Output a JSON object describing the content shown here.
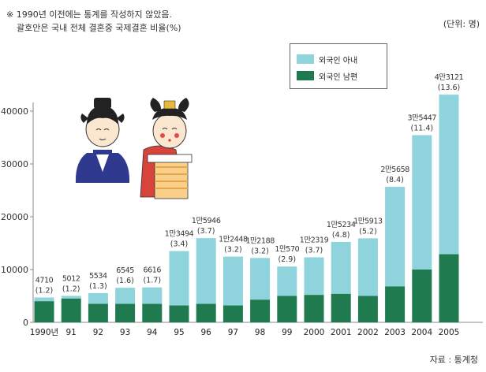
{
  "notes": {
    "line1": "※ 1990년 이전에는 통계를 작성하지 않았음.",
    "line2": "괄호안은 국내 전체 결혼중 국제결혼 비율(%)"
  },
  "unit_label": "(단위: 명)",
  "source_label": "자료 : 통계청",
  "colors": {
    "wife": "#8fd3dc",
    "husband": "#1f7a4f",
    "axis": "#888888"
  },
  "legend": {
    "wife_label": "외국인 아내",
    "husband_label": "외국인 남편"
  },
  "chart_data": {
    "type": "bar",
    "stacked": true,
    "categories": [
      "1990년",
      "91",
      "92",
      "93",
      "94",
      "95",
      "96",
      "97",
      "98",
      "99",
      "2000",
      "2001",
      "2002",
      "2003",
      "2004",
      "2005"
    ],
    "totals": [
      4710,
      5012,
      5534,
      6545,
      6616,
      13494,
      15946,
      12448,
      12188,
      10570,
      12319,
      15234,
      15913,
      25658,
      35447,
      43121
    ],
    "total_labels": [
      "4710",
      "5012",
      "5534",
      "6545",
      "6616",
      "1만3494",
      "1만5946",
      "1만2448",
      "1만2188",
      "1만570",
      "1만2319",
      "1만5234",
      "1만5913",
      "2만5658",
      "3만5447",
      "4만3121"
    ],
    "ratio_labels": [
      "(1.2)",
      "(1.2)",
      "(1.3)",
      "(1.6)",
      "(1.7)",
      "(3.4)",
      "(3.7)",
      "(3.2)",
      "(3.2)",
      "(2.9)",
      "(3.7)",
      "(4.8)",
      "(5.2)",
      "(8.4)",
      "(11.4)",
      "(13.6)"
    ],
    "series": [
      {
        "name": "외국인 남편",
        "values": [
          4000,
          4500,
          3500,
          3500,
          3500,
          3200,
          3500,
          3200,
          4300,
          5000,
          5200,
          5400,
          5000,
          6800,
          10000,
          12900
        ]
      },
      {
        "name": "외국인 아내",
        "values": [
          710,
          512,
          2034,
          3045,
          3116,
          10294,
          12446,
          9248,
          7888,
          5570,
          7119,
          9834,
          10913,
          18858,
          25447,
          30221
        ]
      }
    ],
    "yticks": [
      "0",
      "10000",
      "20000",
      "30000",
      "40000"
    ],
    "ylim": [
      0,
      45000
    ]
  }
}
